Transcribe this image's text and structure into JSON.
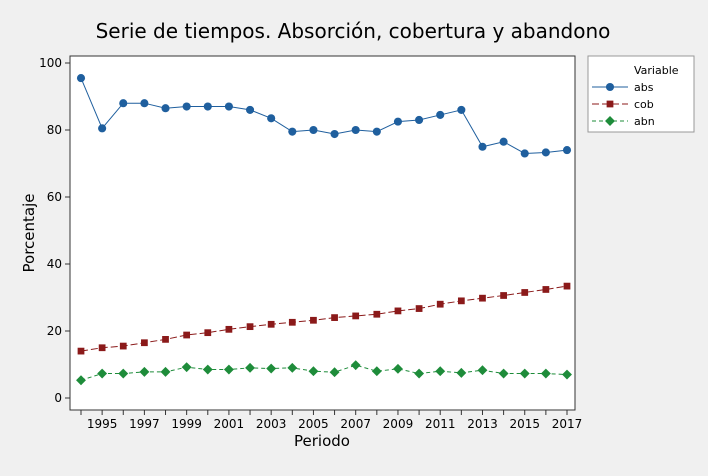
{
  "chart_data": {
    "type": "line",
    "title": "Serie de tiempos. Absorción, cobertura y abandono",
    "xlabel": "Periodo",
    "ylabel": "Porcentaje",
    "xlim": [
      1994,
      2017
    ],
    "ylim": [
      0,
      100
    ],
    "x_ticks": [
      "1995",
      "1997",
      "1999",
      "2001",
      "2003",
      "2005",
      "2007",
      "2009",
      "2011",
      "2013",
      "2015",
      "2017"
    ],
    "y_ticks": [
      "0",
      "20",
      "40",
      "60",
      "80",
      "100"
    ],
    "legend_position": "right",
    "legend_title": "Variable",
    "x": [
      1994,
      1995,
      1996,
      1997,
      1998,
      1999,
      2000,
      2001,
      2002,
      2003,
      2004,
      2005,
      2006,
      2007,
      2008,
      2009,
      2010,
      2011,
      2012,
      2013,
      2014,
      2015,
      2016,
      2017
    ],
    "series": [
      {
        "name": "abs",
        "color": "#1f5f9e",
        "marker": "circle",
        "line": "solid",
        "values": [
          95.5,
          80.5,
          88,
          88,
          86.5,
          87,
          87,
          87,
          86,
          83.5,
          79.5,
          80,
          78.8,
          80,
          79.5,
          82.5,
          83,
          84.5,
          86,
          75,
          76.5,
          73,
          73.3,
          74
        ]
      },
      {
        "name": "cob",
        "color": "#8b1a1a",
        "marker": "square",
        "line": "longdash",
        "values": [
          14,
          15,
          15.5,
          16.5,
          17.5,
          18.8,
          19.5,
          20.5,
          21.3,
          22,
          22.6,
          23.2,
          24,
          24.5,
          25,
          26,
          26.7,
          28,
          29,
          29.8,
          30.6,
          31.5,
          32.4,
          33.4
        ]
      },
      {
        "name": "abn",
        "color": "#1e8c3a",
        "marker": "diamond",
        "line": "dashed",
        "values": [
          5.3,
          7.3,
          7.3,
          7.8,
          7.8,
          9.2,
          8.5,
          8.5,
          9,
          8.8,
          9,
          8,
          7.7,
          9.8,
          8,
          8.7,
          7.3,
          8,
          7.5,
          8.3,
          7.3,
          7.3,
          7.3,
          7
        ]
      }
    ]
  }
}
